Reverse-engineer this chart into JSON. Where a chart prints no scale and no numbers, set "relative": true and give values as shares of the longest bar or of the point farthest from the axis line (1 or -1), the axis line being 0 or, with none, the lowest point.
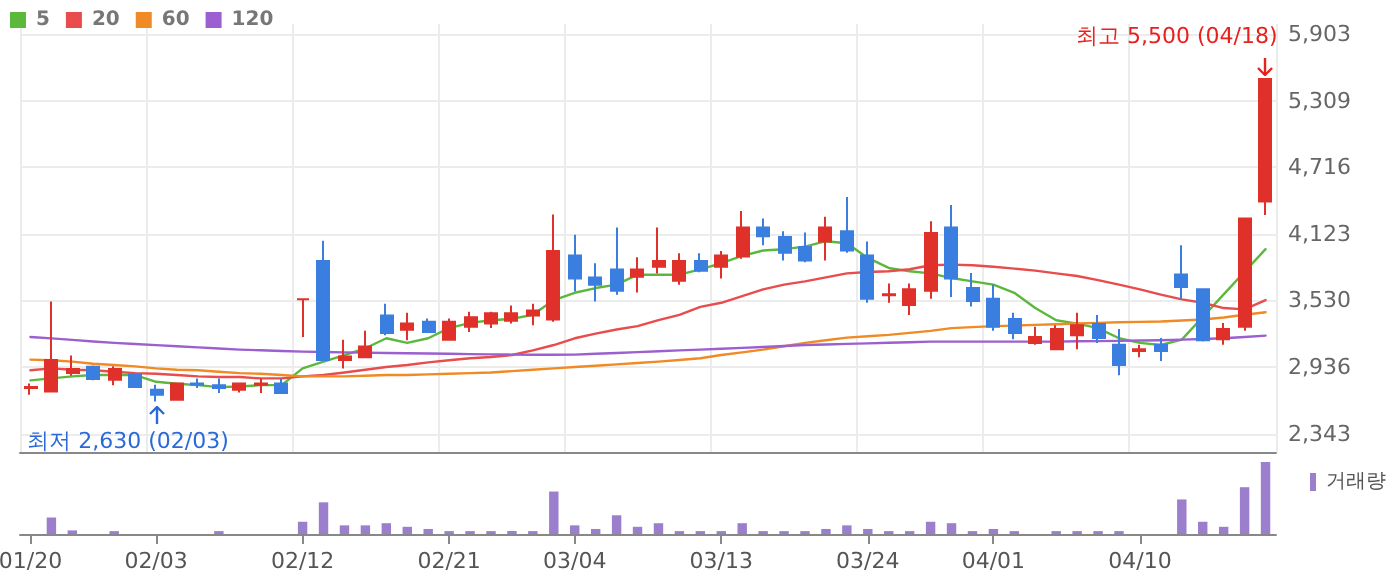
{
  "chart_data": [
    {
      "type": "candlestick",
      "categories": [
        "01/20",
        null,
        null,
        null,
        null,
        null,
        "02/03",
        null,
        null,
        null,
        null,
        null,
        null,
        "02/12",
        null,
        null,
        null,
        null,
        null,
        null,
        "02/21",
        null,
        null,
        null,
        null,
        null,
        "03/04",
        null,
        null,
        null,
        null,
        null,
        null,
        "03/13",
        null,
        null,
        null,
        null,
        null,
        null,
        "03/24",
        null,
        null,
        null,
        null,
        null,
        "04/01",
        null,
        null,
        null,
        null,
        null,
        null,
        "04/10",
        null,
        null,
        null,
        null,
        null,
        null
      ],
      "ohlc": [
        [
          2750,
          2790,
          2690,
          2760
        ],
        [
          2720,
          3520,
          2717,
          3000
        ],
        [
          2885,
          3040,
          2860,
          2920
        ],
        [
          2940,
          2950,
          2820,
          2830
        ],
        [
          2825,
          2945,
          2775,
          2920
        ],
        [
          2870,
          2880,
          2755,
          2760
        ],
        [
          2735,
          2780,
          2630,
          2690
        ],
        [
          2645,
          2800,
          2640,
          2790
        ],
        [
          2790,
          2835,
          2750,
          2780
        ],
        [
          2775,
          2835,
          2705,
          2750
        ],
        [
          2735,
          2790,
          2710,
          2790
        ],
        [
          2780,
          2835,
          2705,
          2790
        ],
        [
          2790,
          2835,
          2700,
          2705
        ],
        [
          3540,
          3540,
          3205,
          3540
        ],
        [
          3880,
          4060,
          2990,
          3000
        ],
        [
          3000,
          3180,
          2925,
          3030
        ],
        [
          3025,
          3260,
          3020,
          3120
        ],
        [
          3395,
          3500,
          3220,
          3240
        ],
        [
          3270,
          3420,
          3175,
          3325
        ],
        [
          3340,
          3370,
          3240,
          3250
        ],
        [
          3180,
          3370,
          3170,
          3340
        ],
        [
          3295,
          3430,
          3250,
          3380
        ],
        [
          3325,
          3430,
          3285,
          3415
        ],
        [
          3350,
          3485,
          3325,
          3415
        ],
        [
          3395,
          3500,
          3310,
          3440
        ],
        [
          3360,
          4295,
          3340,
          3970
        ],
        [
          3930,
          4115,
          3610,
          3725
        ],
        [
          3735,
          3860,
          3520,
          3670
        ],
        [
          3805,
          4180,
          3580,
          3615
        ],
        [
          3740,
          3915,
          3600,
          3805
        ],
        [
          3830,
          4180,
          3770,
          3880
        ],
        [
          3705,
          3950,
          3670,
          3880
        ],
        [
          3880,
          3950,
          3780,
          3795
        ],
        [
          3830,
          3970,
          3725,
          3930
        ],
        [
          3920,
          4325,
          3900,
          4180
        ],
        [
          4180,
          4260,
          4020,
          4100
        ],
        [
          4095,
          4145,
          3885,
          3955
        ],
        [
          4005,
          4135,
          3870,
          3885
        ],
        [
          4055,
          4275,
          3885,
          4180
        ],
        [
          4145,
          4450,
          3955,
          3975
        ],
        [
          3930,
          4055,
          3510,
          3545
        ],
        [
          3575,
          3680,
          3510,
          3585
        ],
        [
          3490,
          3680,
          3400,
          3630
        ],
        [
          3615,
          4235,
          3545,
          4130
        ],
        [
          4180,
          4380,
          3560,
          3725
        ],
        [
          3640,
          3775,
          3475,
          3525
        ],
        [
          3545,
          3670,
          3260,
          3295
        ],
        [
          3365,
          3420,
          3185,
          3240
        ],
        [
          3150,
          3295,
          3135,
          3205
        ],
        [
          3095,
          3310,
          3090,
          3275
        ],
        [
          3220,
          3420,
          3095,
          3310
        ],
        [
          3320,
          3400,
          3150,
          3195
        ],
        [
          3135,
          3275,
          2865,
          2955
        ],
        [
          3080,
          3135,
          3025,
          3095
        ],
        [
          3135,
          3195,
          2990,
          3080
        ],
        [
          3760,
          4020,
          3545,
          3650
        ],
        [
          3630,
          3630,
          3165,
          3175
        ],
        [
          3185,
          3330,
          3135,
          3275
        ],
        [
          3295,
          4260,
          3260,
          4260
        ],
        [
          4410,
          5500,
          4290,
          5500
        ]
      ],
      "colors": [
        "#e0302a",
        "#e0302a",
        "#e0302a",
        "#3a7ee0",
        "#e0302a",
        "#3a7ee0",
        "#3a7ee0",
        "#e0302a",
        "#3a7ee0",
        "#3a7ee0",
        "#e0302a",
        "#e0302a",
        "#3a7ee0",
        "#e0302a",
        "#3a7ee0",
        "#e0302a",
        "#e0302a",
        "#3a7ee0",
        "#e0302a",
        "#3a7ee0",
        "#e0302a",
        "#e0302a",
        "#e0302a",
        "#e0302a",
        "#e0302a",
        "#e0302a",
        "#3a7ee0",
        "#3a7ee0",
        "#3a7ee0",
        "#e0302a",
        "#e0302a",
        "#e0302a",
        "#3a7ee0",
        "#e0302a",
        "#e0302a",
        "#3a7ee0",
        "#3a7ee0",
        "#3a7ee0",
        "#e0302a",
        "#3a7ee0",
        "#3a7ee0",
        "#e0302a",
        "#e0302a",
        "#e0302a",
        "#3a7ee0",
        "#3a7ee0",
        "#3a7ee0",
        "#3a7ee0",
        "#e0302a",
        "#e0302a",
        "#e0302a",
        "#3a7ee0",
        "#3a7ee0",
        "#e0302a",
        "#3a7ee0",
        "#3a7ee0",
        "#3a7ee0",
        "#e0302a",
        "#e0302a",
        "#e0302a"
      ],
      "series": [
        {
          "name": "5",
          "type": "line",
          "color": "#5cb83c",
          "values": [
            2818,
            2836,
            2854,
            2866,
            2866,
            2866,
            2806,
            2788,
            2776,
            2758,
            2764,
            2776,
            2776,
            2925,
            2985,
            3044,
            3104,
            3193,
            3152,
            3193,
            3283,
            3330,
            3354,
            3366,
            3402,
            3533,
            3598,
            3640,
            3670,
            3759,
            3759,
            3759,
            3807,
            3861,
            3926,
            3974,
            3986,
            4009,
            4057,
            4039,
            3908,
            3819,
            3789,
            3771,
            3729,
            3700,
            3670,
            3598,
            3462,
            3354,
            3324,
            3283,
            3193,
            3152,
            3133,
            3181,
            null,
            null,
            null,
            3986
          ]
        },
        {
          "name": "20",
          "type": "line",
          "color": "#e84c4c",
          "values": [
            2908,
            2925,
            2913,
            2908,
            2895,
            2883,
            2877,
            2866,
            2854,
            2848,
            2848,
            2836,
            2836,
            2854,
            2866,
            2889,
            2913,
            2937,
            2955,
            2979,
            2997,
            3015,
            3027,
            3044,
            3086,
            3133,
            3193,
            3235,
            3271,
            3301,
            3354,
            3402,
            3473,
            3509,
            3568,
            3628,
            3670,
            3700,
            3735,
            3771,
            3783,
            3789,
            3807,
            3843,
            3849,
            3843,
            3830,
            3813,
            3795,
            3771,
            3747,
            3711,
            3670,
            3628,
            3581,
            3539,
            3509,
            3462,
            3450,
            3533
          ]
        },
        {
          "name": "60",
          "type": "line",
          "color": "#f08a24",
          "values": [
            3003,
            2997,
            2985,
            2966,
            2955,
            2943,
            2925,
            2913,
            2908,
            2895,
            2883,
            2877,
            2866,
            2854,
            2854,
            2854,
            2860,
            2866,
            2866,
            2872,
            2877,
            2883,
            2889,
            2901,
            2913,
            2925,
            2937,
            2949,
            2961,
            2973,
            2985,
            3000,
            3015,
            3044,
            3068,
            3092,
            3122,
            3152,
            3175,
            3199,
            3211,
            3223,
            3241,
            3259,
            3283,
            3292,
            3301,
            3306,
            3312,
            3318,
            3324,
            3330,
            3336,
            3339,
            3342,
            3351,
            3360,
            3378,
            3402,
            3425
          ]
        },
        {
          "name": "120",
          "type": "line",
          "color": "#9b5fd0",
          "values": [
            3205,
            3192,
            3179,
            3165,
            3152,
            3142,
            3132,
            3122,
            3112,
            3102,
            3092,
            3086,
            3080,
            3074,
            3071,
            3068,
            3065,
            3062,
            3060,
            3057,
            3055,
            3052,
            3050,
            3048,
            3046,
            3046,
            3048,
            3055,
            3062,
            3070,
            3077,
            3085,
            3092,
            3100,
            3108,
            3116,
            3125,
            3133,
            3138,
            3143,
            3148,
            3153,
            3158,
            3163,
            3163,
            3163,
            3163,
            3163,
            3163,
            3163,
            3166,
            3168,
            3170,
            3173,
            3175,
            3181,
            3187,
            3193,
            3205,
            3217
          ]
        }
      ],
      "ylim": [
        2181,
        5990
      ],
      "yticks": [
        {
          "value": 2343,
          "label": "2,343"
        },
        {
          "value": 2936,
          "label": "2,936"
        },
        {
          "value": 3530,
          "label": "3,530"
        },
        {
          "value": 4123,
          "label": "4,123"
        },
        {
          "value": 4716,
          "label": "4,716"
        },
        {
          "value": 5309,
          "label": "5,309"
        },
        {
          "value": 5903,
          "label": "5,903"
        }
      ],
      "annotations": [
        {
          "text": "최저 2,630 (02/03)",
          "x": "02/03",
          "y": 2630
        },
        "최고 5,500 (04/18)"
      ],
      "grid": true,
      "legend": "top left",
      "marker": "none",
      "line_style": "solid",
      "tick_labels": "y"
    },
    {
      "type": "bar",
      "relative": true,
      "categories": [
        "01/20",
        null,
        null,
        null,
        null,
        null,
        "02/03",
        null,
        null,
        null,
        null,
        null,
        null,
        "02/12",
        null,
        null,
        null,
        null,
        null,
        null,
        "02/21",
        null,
        null,
        null,
        null,
        null,
        "03/04",
        null,
        null,
        null,
        null,
        null,
        null,
        "03/13",
        null,
        null,
        null,
        null,
        null,
        null,
        "03/24",
        null,
        null,
        null,
        null,
        null,
        "04/01",
        null,
        null,
        null,
        null,
        null,
        null,
        "04/10",
        null,
        null,
        null,
        null,
        null,
        null
      ],
      "series": [
        {
          "name": "거래량",
          "color": "#9b7fcc",
          "values": [
            0,
            0.23,
            0.05,
            0,
            0.04,
            0,
            0,
            0,
            0,
            0.04,
            0,
            0,
            0,
            0.17,
            0.44,
            0.12,
            0.12,
            0.15,
            0.1,
            0.07,
            0.04,
            0.04,
            0.04,
            0.04,
            0.04,
            0.59,
            0.12,
            0.07,
            0.26,
            0.1,
            0.15,
            0.04,
            0.04,
            0.04,
            0.15,
            0.04,
            0.04,
            0.04,
            0.07,
            0.12,
            0.07,
            0.04,
            0.04,
            0.17,
            0.15,
            0.04,
            0.07,
            0.04,
            0,
            0.04,
            0.04,
            0.04,
            0.04,
            0,
            0,
            0.48,
            0.17,
            0.1,
            0.65,
            1
          ]
        }
      ],
      "legend": "top right",
      "grid": false,
      "tick_labels": "x"
    }
  ]
}
